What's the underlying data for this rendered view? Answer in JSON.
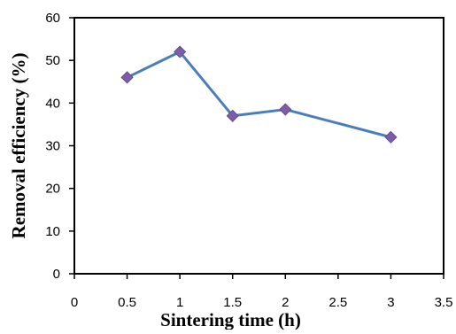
{
  "chart_data": {
    "type": "scatter",
    "title": "",
    "xlabel": "Sintering time (h)",
    "ylabel": "Removal efficiency (%)",
    "xlim": [
      0,
      3.5
    ],
    "ylim": [
      0,
      60
    ],
    "x_ticks": [
      "0",
      "0.5",
      "1",
      "1.5",
      "2",
      "2.5",
      "3",
      "3.5"
    ],
    "y_ticks": [
      "0",
      "10",
      "20",
      "30",
      "40",
      "50",
      "60"
    ],
    "grid": false,
    "legend": "none",
    "series": [
      {
        "x": [
          0.5,
          1,
          1.5,
          2,
          3
        ],
        "y": [
          46,
          52,
          37,
          38.5,
          32
        ],
        "line_color": "#4a7ebb",
        "marker": "diamond",
        "marker_color": "#7b5ea7"
      }
    ]
  }
}
